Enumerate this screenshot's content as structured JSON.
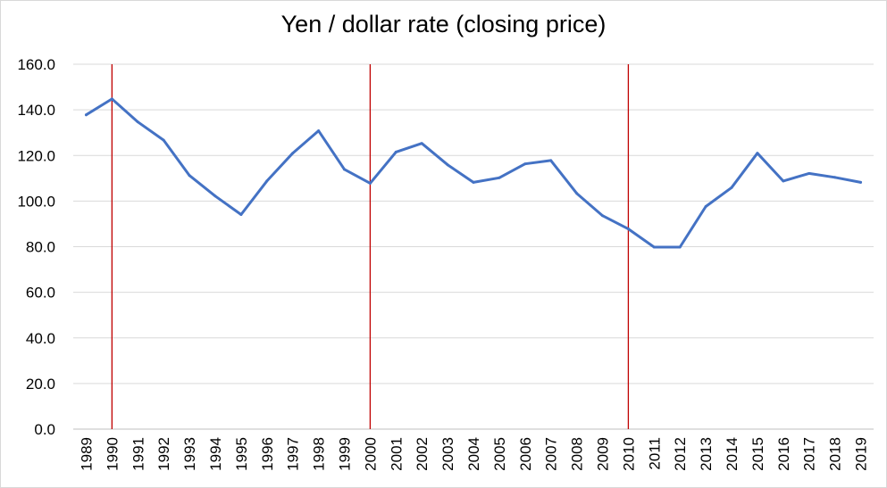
{
  "chart_data": {
    "type": "line",
    "title": "Yen / dollar rate (closing price)",
    "xlabel": "",
    "ylabel": "",
    "ylim": [
      0,
      160
    ],
    "yticks": [
      "0.0",
      "20.0",
      "40.0",
      "60.0",
      "80.0",
      "100.0",
      "120.0",
      "140.0",
      "160.0"
    ],
    "grid": true,
    "legend": "none",
    "categories": [
      "1989",
      "1990",
      "1991",
      "1992",
      "1993",
      "1994",
      "1995",
      "1996",
      "1997",
      "1998",
      "1999",
      "2000",
      "2001",
      "2002",
      "2003",
      "2004",
      "2005",
      "2006",
      "2007",
      "2008",
      "2009",
      "2010",
      "2011",
      "2012",
      "2013",
      "2014",
      "2015",
      "2016",
      "2017",
      "2018",
      "2019"
    ],
    "series": [
      {
        "values": [
          137.8,
          144.8,
          134.7,
          126.7,
          111.2,
          102.2,
          94.1,
          108.8,
          121.0,
          130.8,
          113.9,
          107.8,
          121.5,
          125.3,
          115.9,
          108.2,
          110.2,
          116.3,
          117.8,
          103.4,
          93.6,
          87.8,
          79.8,
          79.8,
          97.6,
          105.9,
          121.0,
          108.8,
          112.1,
          110.4,
          108.2
        ],
        "color": "#4472c4"
      }
    ],
    "markers": {
      "categories": [
        "1990",
        "2000",
        "2010"
      ],
      "color": "#c00000"
    }
  }
}
